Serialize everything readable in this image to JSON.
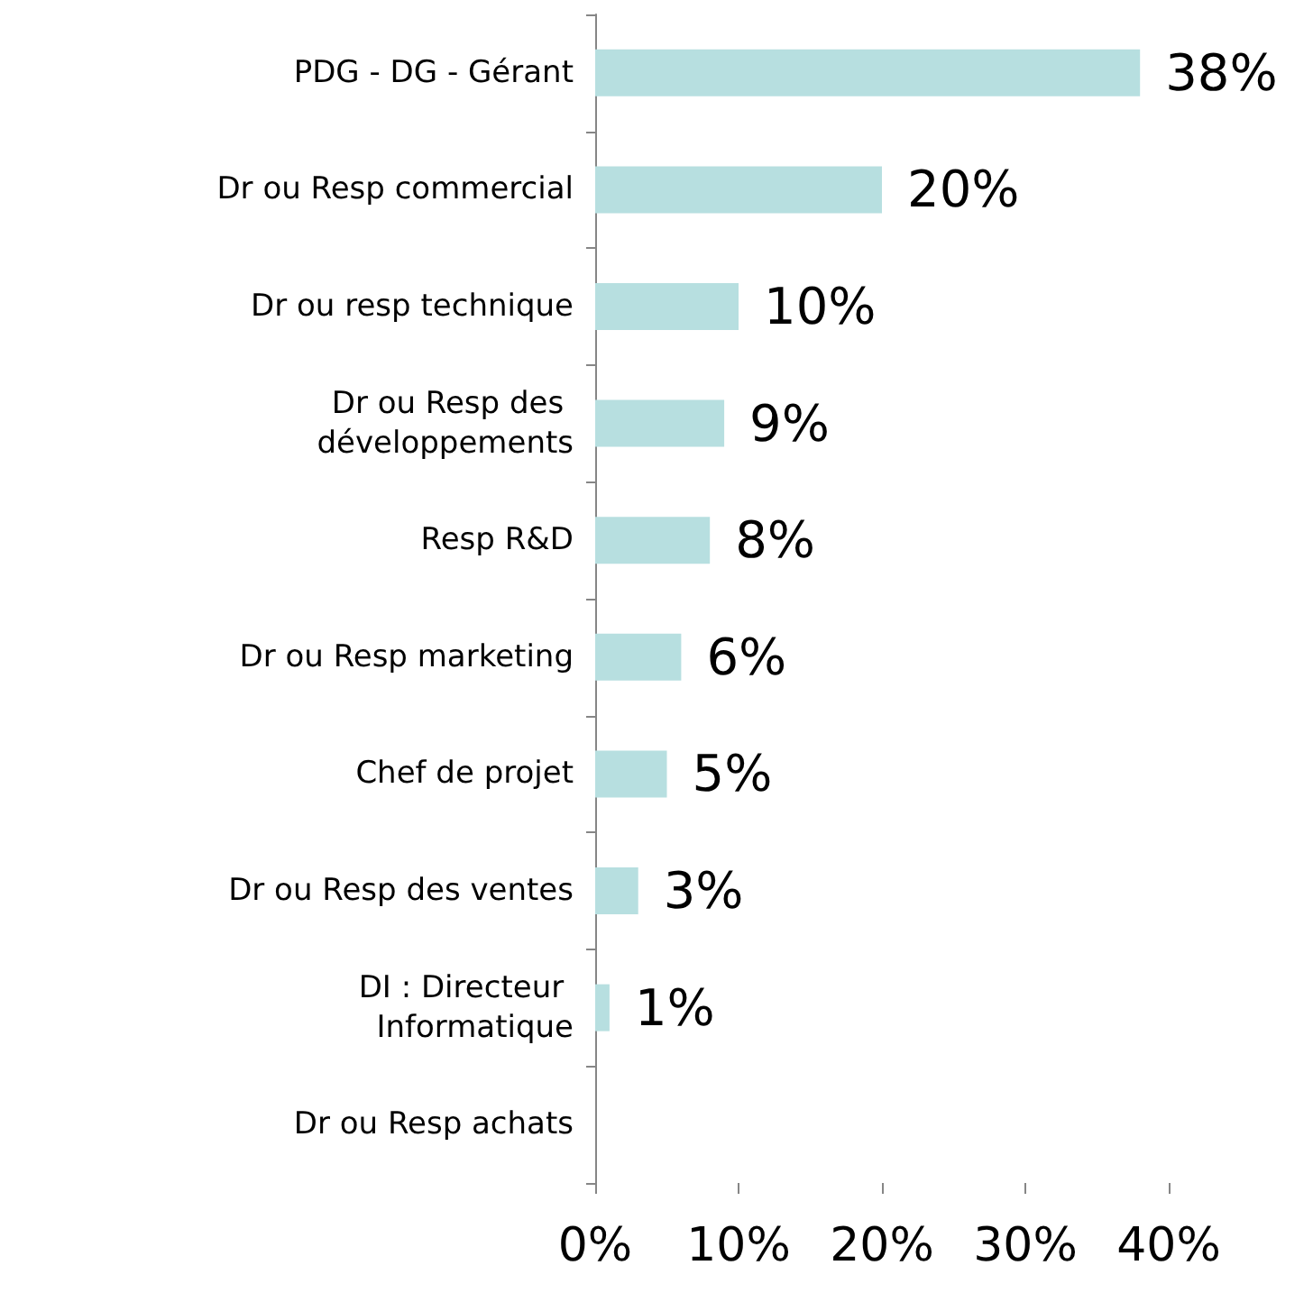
{
  "chart_data": {
    "type": "bar",
    "orientation": "horizontal",
    "categories": [
      "PDG - DG - Gérant",
      "Dr ou Resp commercial",
      "Dr ou resp technique",
      "Dr ou Resp des développements",
      "Resp R&D",
      "Dr ou Resp marketing",
      "Chef de projet",
      "Dr ou Resp des ventes",
      "DI : Directeur Informatique",
      "Dr ou Resp achats"
    ],
    "values": [
      38,
      20,
      10,
      9,
      8,
      6,
      5,
      3,
      1,
      0
    ],
    "value_labels": [
      "38%",
      "20%",
      "10%",
      "9%",
      "8%",
      "6%",
      "5%",
      "3%",
      "1%",
      null
    ],
    "color": "#b7dfe0",
    "xlim": [
      0,
      40
    ],
    "xticks": [
      {
        "value": 0,
        "label": "0%"
      },
      {
        "value": 10,
        "label": "10%"
      },
      {
        "value": 20,
        "label": "20%"
      },
      {
        "value": 30,
        "label": "30%"
      },
      {
        "value": 40,
        "label": "40%"
      }
    ],
    "grid": false
  }
}
